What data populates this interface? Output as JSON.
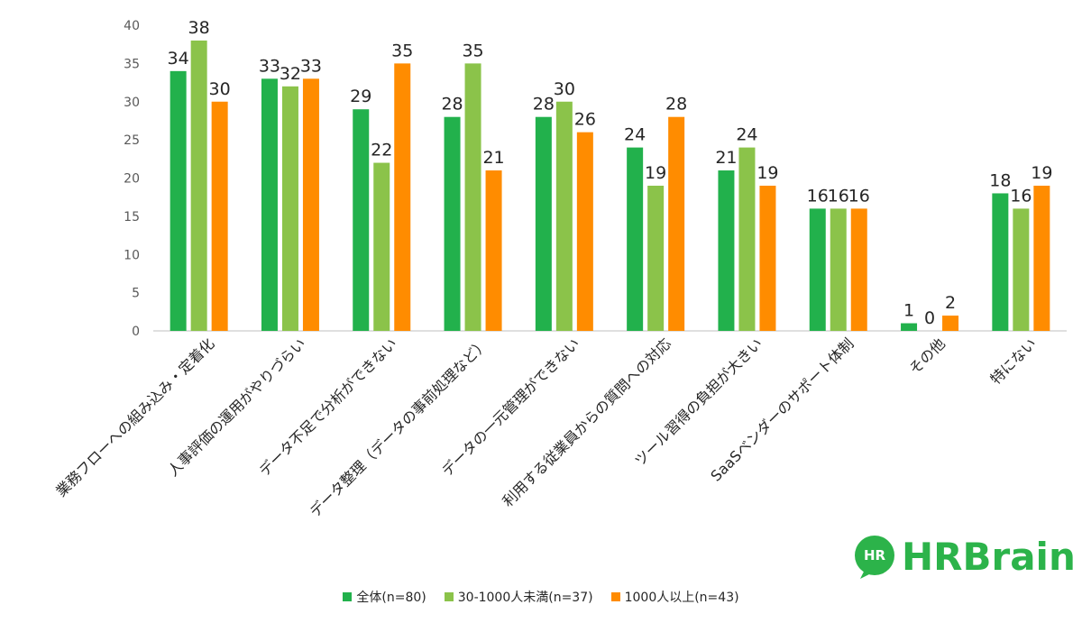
{
  "chart_data": {
    "type": "bar",
    "categories": [
      "業務フローへの組み込み・定着化",
      "人事評価の運用がやりづらい",
      "データ不足で分析ができない",
      "データ整理（データの事前処理など）",
      "データの一元管理ができない",
      "利用する従業員からの質問への対応",
      "ツール習得の負担が大きい",
      "SaaSベンダーのサポート体制",
      "その他",
      "特にない"
    ],
    "series": [
      {
        "name": "全体(n=80)",
        "color": "#22b14c",
        "values": [
          34,
          33,
          29,
          28,
          28,
          24,
          21,
          16,
          1,
          18
        ]
      },
      {
        "name": "30-1000人未満(n=37)",
        "color": "#8bc34a",
        "values": [
          38,
          32,
          22,
          35,
          30,
          19,
          24,
          16,
          0,
          16
        ]
      },
      {
        "name": "1000人以上(n=43)",
        "color": "#ff8c00",
        "values": [
          30,
          33,
          35,
          21,
          26,
          28,
          19,
          16,
          2,
          19
        ]
      }
    ],
    "yticks": [
      0,
      5,
      10,
      15,
      20,
      25,
      30,
      35,
      40
    ],
    "ylim": [
      0,
      40
    ],
    "title": "",
    "xlabel": "",
    "ylabel": "",
    "grid": false,
    "legend_position": "bottom"
  },
  "logo": {
    "badge": "HR",
    "text": "HRBrain"
  }
}
